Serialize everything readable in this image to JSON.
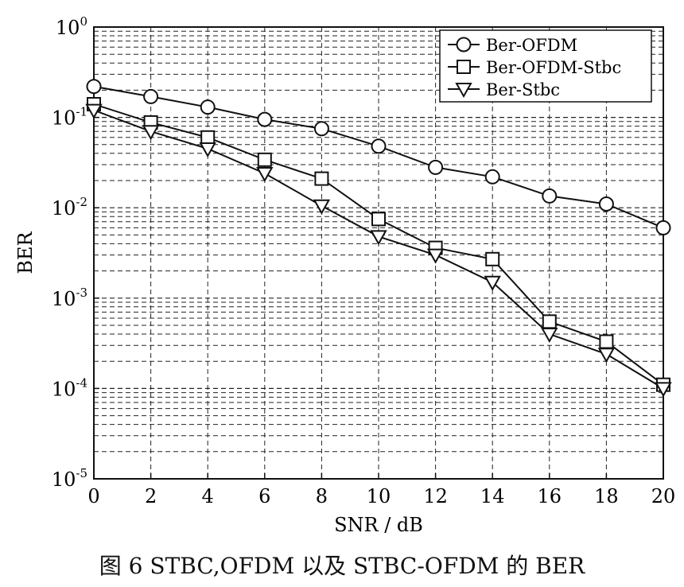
{
  "caption": "图 6 STBC,OFDM 以及 STBC-OFDM 的 BER",
  "chart_data": {
    "type": "line",
    "title": "",
    "xlabel": "SNR / dB",
    "ylabel": "BER",
    "x_scale": "linear",
    "y_scale": "log",
    "xlim": [
      0,
      20
    ],
    "ylim": [
      1e-05,
      1
    ],
    "x_ticks": [
      0,
      2,
      4,
      6,
      8,
      10,
      12,
      14,
      16,
      18,
      20
    ],
    "x_tick_labels": [
      "0",
      "2",
      "4",
      "6",
      "8",
      "10",
      "12",
      "14",
      "16",
      "18",
      "20"
    ],
    "y_ticks": [
      {
        "value": 1,
        "base": "10",
        "exp": "0"
      },
      {
        "value": 0.1,
        "base": "10",
        "exp": "-1"
      },
      {
        "value": 0.01,
        "base": "10",
        "exp": "-2"
      },
      {
        "value": 0.001,
        "base": "10",
        "exp": "-3"
      },
      {
        "value": 0.0001,
        "base": "10",
        "exp": "-4"
      },
      {
        "value": 1e-05,
        "base": "10",
        "exp": "-5"
      }
    ],
    "grid": true,
    "legend_position": "top-right",
    "x": [
      0,
      2,
      4,
      6,
      8,
      10,
      12,
      14,
      16,
      18,
      20
    ],
    "series": [
      {
        "name": "Ber-OFDM",
        "marker": "circle",
        "values": [
          0.22,
          0.17,
          0.13,
          0.095,
          0.075,
          0.048,
          0.028,
          0.022,
          0.0135,
          0.011,
          0.006
        ]
      },
      {
        "name": "Ber-OFDM-Stbc",
        "marker": "square",
        "values": [
          0.14,
          0.088,
          0.06,
          0.034,
          0.021,
          0.0075,
          0.0036,
          0.0027,
          0.00055,
          0.00033,
          0.00011
        ]
      },
      {
        "name": "Ber-Stbc",
        "marker": "triangle-down",
        "values": [
          0.12,
          0.07,
          0.045,
          0.024,
          0.0105,
          0.0048,
          0.003,
          0.0015,
          0.0004,
          0.00024,
          0.0001
        ]
      }
    ]
  }
}
